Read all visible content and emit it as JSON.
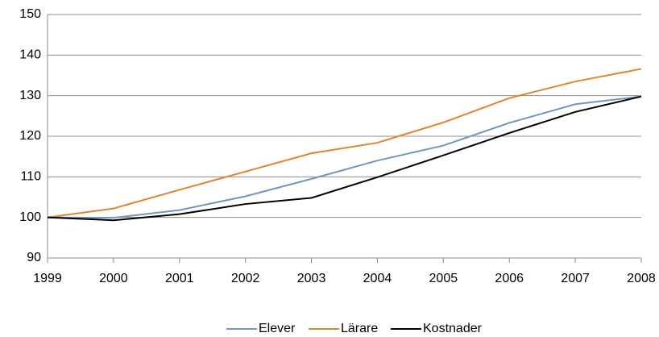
{
  "chart_data": {
    "type": "line",
    "x": [
      1999,
      2000,
      2001,
      2002,
      2003,
      2004,
      2005,
      2006,
      2007,
      2008
    ],
    "xlim": [
      1999,
      2008
    ],
    "xticks": [
      1999,
      2000,
      2001,
      2002,
      2003,
      2004,
      2005,
      2006,
      2007,
      2008
    ],
    "ylim": [
      90,
      150
    ],
    "yticks": [
      90,
      100,
      110,
      120,
      130,
      140,
      150
    ],
    "grid": true,
    "legend": "bottom",
    "series": [
      {
        "name": "Elever",
        "color": "#7096c4",
        "values": [
          100,
          99.9,
          101.8,
          105.2,
          109.5,
          114,
          117.7,
          123.3,
          127.9,
          129.8
        ]
      },
      {
        "name": "Lärare",
        "color": "#e0852f",
        "values": [
          100,
          102.2,
          106.8,
          111.3,
          115.8,
          118.4,
          123.4,
          129.4,
          133.5,
          136.6
        ]
      },
      {
        "name": "Kostnader",
        "color": "#000000",
        "values": [
          100,
          99.3,
          100.8,
          103.3,
          104.8,
          109.9,
          115.3,
          120.8,
          126,
          129.8
        ]
      }
    ]
  }
}
